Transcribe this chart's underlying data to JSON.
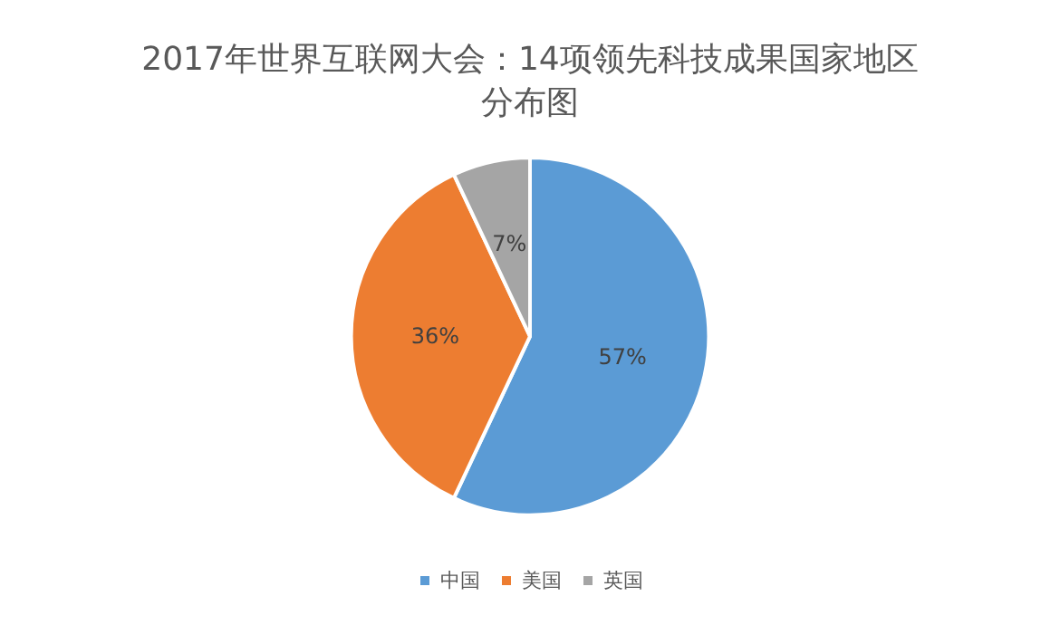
{
  "chart_data": {
    "type": "pie",
    "title": "2017年世界互联网大会：14项领先科技成果国家地区分布图",
    "categories": [
      "中国",
      "美国",
      "英国"
    ],
    "values": [
      57,
      36,
      7
    ],
    "colors": [
      "#5b9bd5",
      "#ed7d31",
      "#a5a5a5"
    ],
    "value_labels": [
      "57%",
      "36%",
      "7%"
    ],
    "legend": "bottom"
  }
}
